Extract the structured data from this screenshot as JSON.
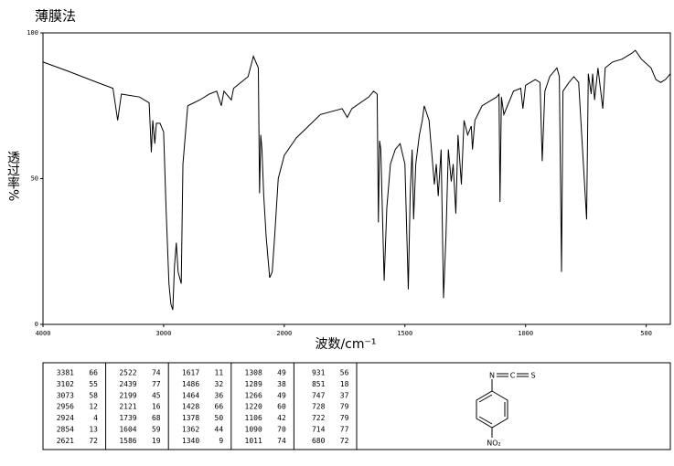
{
  "chart_data": {
    "type": "line",
    "title": "薄膜法",
    "x_label": "波数/cm⁻¹",
    "y_label": "透过率%",
    "color": "#000000",
    "xlim": [
      4000,
      400
    ],
    "x_scale": {
      "expand_below": 2000,
      "factor": 2
    },
    "xticks": [
      4000,
      3000,
      2000,
      1500,
      1000,
      500
    ],
    "ylim": [
      0,
      100
    ],
    "yticks": [
      0,
      50,
      100
    ],
    "x": [
      4000,
      3800,
      3550,
      3420,
      3381,
      3350,
      3200,
      3120,
      3102,
      3090,
      3073,
      3060,
      3030,
      3000,
      2980,
      2956,
      2940,
      2924,
      2910,
      2895,
      2880,
      2854,
      2840,
      2800,
      2700,
      2622,
      2560,
      2522,
      2500,
      2439,
      2420,
      2300,
      2256,
      2215,
      2205,
      2195,
      2185,
      2170,
      2150,
      2121,
      2100,
      2080,
      2050,
      2000,
      1950,
      1900,
      1850,
      1760,
      1739,
      1720,
      1650,
      1630,
      1615,
      1610,
      1605,
      1600,
      1586,
      1575,
      1560,
      1540,
      1520,
      1500,
      1486,
      1478,
      1470,
      1464,
      1455,
      1440,
      1428,
      1420,
      1400,
      1390,
      1378,
      1370,
      1362,
      1350,
      1340,
      1330,
      1320,
      1308,
      1300,
      1289,
      1280,
      1266,
      1255,
      1240,
      1225,
      1220,
      1210,
      1180,
      1120,
      1110,
      1106,
      1100,
      1090,
      1050,
      1020,
      1011,
      1000,
      960,
      940,
      931,
      920,
      900,
      870,
      860,
      851,
      845,
      820,
      800,
      780,
      747,
      740,
      728,
      722,
      714,
      700,
      680,
      670,
      640,
      600,
      560,
      545,
      520,
      480,
      460,
      440,
      420,
      400
    ],
    "values": [
      90,
      87,
      83,
      81,
      70,
      79,
      78,
      76,
      59,
      70,
      62,
      69,
      69,
      66,
      40,
      14,
      7,
      5,
      20,
      28,
      18,
      14,
      55,
      75,
      77,
      79,
      80,
      75,
      80,
      77,
      81,
      85,
      92,
      88,
      45,
      65,
      60,
      44,
      30,
      16,
      18,
      30,
      50,
      58,
      64,
      68,
      72,
      74,
      71,
      74,
      78,
      80,
      79,
      35,
      63,
      60,
      15,
      40,
      55,
      60,
      62,
      55,
      12,
      45,
      60,
      36,
      55,
      65,
      70,
      75,
      70,
      60,
      48,
      55,
      44,
      60,
      9,
      30,
      60,
      49,
      55,
      38,
      65,
      48,
      70,
      65,
      68,
      60,
      70,
      75,
      78,
      79,
      42,
      78,
      72,
      80,
      81,
      74,
      82,
      84,
      83,
      56,
      80,
      85,
      88,
      85,
      18,
      80,
      83,
      85,
      83,
      36,
      86,
      79,
      86,
      77,
      88,
      74,
      88,
      90,
      91,
      93,
      94,
      91,
      88,
      84,
      83,
      84,
      86
    ]
  },
  "peak_table": {
    "rows": [
      [
        3381,
        66,
        2522,
        74,
        1617,
        11,
        1308,
        49,
        931,
        56
      ],
      [
        3102,
        55,
        2439,
        77,
        1486,
        32,
        1289,
        38,
        851,
        18
      ],
      [
        3073,
        58,
        2199,
        45,
        1464,
        36,
        1266,
        49,
        747,
        37
      ],
      [
        2956,
        12,
        2121,
        16,
        1428,
        66,
        1220,
        60,
        728,
        79
      ],
      [
        2924,
        4,
        1739,
        68,
        1378,
        50,
        1106,
        42,
        722,
        79
      ],
      [
        2854,
        13,
        1604,
        59,
        1362,
        44,
        1090,
        70,
        714,
        77
      ],
      [
        2621,
        72,
        1586,
        19,
        1340,
        9,
        1011,
        74,
        680,
        72
      ]
    ]
  },
  "structure": {
    "atoms": [
      "N",
      "C",
      "S",
      "NO₂"
    ]
  }
}
